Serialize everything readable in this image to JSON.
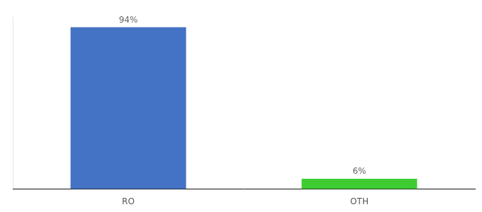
{
  "chart_data": {
    "type": "bar",
    "categories": [
      "RO",
      "OTH"
    ],
    "values": [
      94,
      6
    ],
    "value_labels": [
      "94%",
      "6%"
    ],
    "colors": [
      "#4472c4",
      "#3ecc32"
    ],
    "ylim": [
      0,
      100
    ],
    "grid": false,
    "data_labels": true,
    "tick_labels": "x"
  }
}
